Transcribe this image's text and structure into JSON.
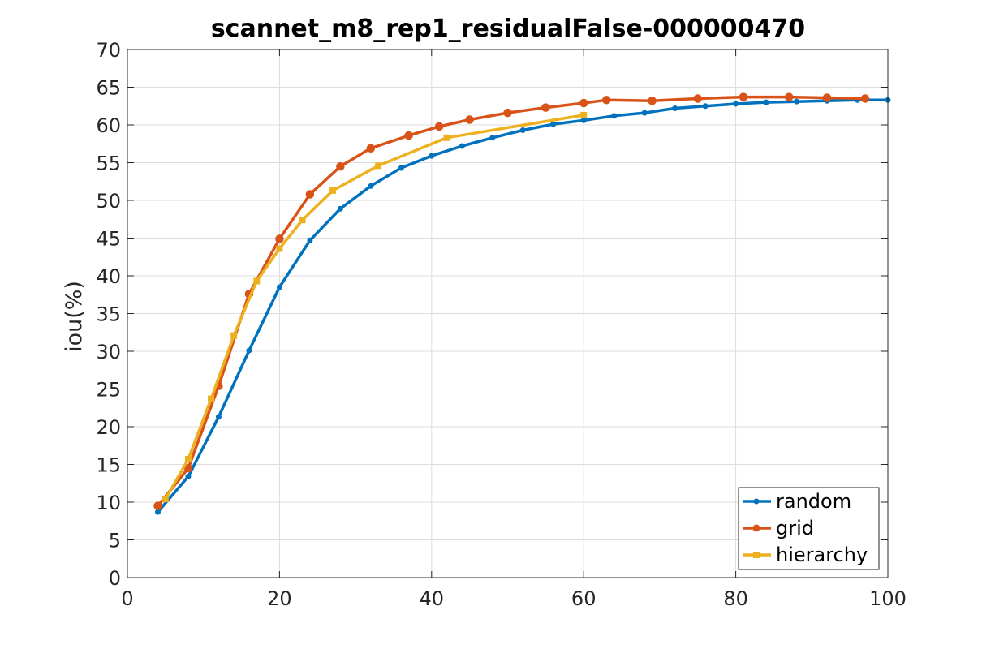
{
  "chart_data": {
    "type": "line",
    "title": "scannet_m8_rep1_residualFalse-000000470",
    "xlabel": "",
    "ylabel": "iou(%)",
    "xlim": [
      0,
      100
    ],
    "ylim": [
      0,
      70
    ],
    "xticks": [
      0,
      20,
      40,
      60,
      80,
      100
    ],
    "yticks": [
      0,
      5,
      10,
      15,
      20,
      25,
      30,
      35,
      40,
      45,
      50,
      55,
      60,
      65,
      70
    ],
    "grid": true,
    "box": true,
    "legend_position": "bottom-right",
    "series": [
      {
        "name": "random",
        "color": "#0072BD",
        "marker": "dot",
        "x": [
          4,
          8,
          12,
          16,
          20,
          24,
          28,
          32,
          36,
          40,
          44,
          48,
          52,
          56,
          60,
          64,
          68,
          72,
          76,
          80,
          84,
          88,
          92,
          96,
          100
        ],
        "y": [
          8.7,
          13.4,
          21.3,
          30.1,
          38.5,
          44.7,
          48.9,
          51.9,
          54.3,
          55.9,
          57.2,
          58.3,
          59.3,
          60.1,
          60.6,
          61.2,
          61.6,
          62.2,
          62.5,
          62.8,
          63.0,
          63.1,
          63.2,
          63.3,
          63.3
        ]
      },
      {
        "name": "grid",
        "color": "#D95319",
        "marker": "circle",
        "x": [
          4,
          8,
          12,
          16,
          20,
          24,
          28,
          32,
          37,
          41,
          45,
          50,
          55,
          60,
          63,
          69,
          75,
          81,
          87,
          92,
          97
        ],
        "y": [
          9.5,
          14.5,
          25.4,
          37.6,
          44.9,
          50.8,
          54.5,
          56.9,
          58.6,
          59.8,
          60.7,
          61.6,
          62.3,
          62.9,
          63.3,
          63.2,
          63.5,
          63.7,
          63.7,
          63.6,
          63.5
        ]
      },
      {
        "name": "hierarchy",
        "color": "#EDB120",
        "marker": "square",
        "x": [
          5,
          8,
          11,
          14,
          17,
          20,
          23,
          27,
          33,
          42,
          60
        ],
        "y": [
          10.4,
          15.7,
          23.7,
          32.1,
          39.3,
          43.6,
          47.4,
          51.3,
          54.6,
          58.3,
          61.3
        ]
      }
    ]
  }
}
